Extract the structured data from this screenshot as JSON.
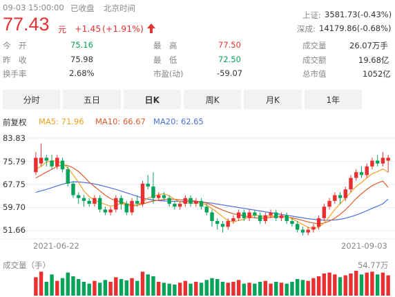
{
  "header": {
    "datetime": "09-03 15:00:00",
    "status": "已收盘",
    "timezone": "北京时间",
    "price": "77.43",
    "currency": "元",
    "change": "+1.45",
    "change_pct": "(+1.91%)",
    "arrow": "up-arrow-icon"
  },
  "indices": [
    {
      "name": "上证:",
      "value": "3581.73(-0.43%)"
    },
    {
      "name": "深成:",
      "value": "14179.86(-0.68%)"
    }
  ],
  "stats": {
    "open_label": "今　开",
    "open": "75.16",
    "prev_label": "昨　收",
    "prev": "75.98",
    "turnover_label": "换手率",
    "turnover": "2.68%",
    "high_label": "最　高",
    "high": "77.50",
    "low_label": "最　低",
    "low": "72.50",
    "pe_label": "市盈(动)",
    "pe": "-59.07",
    "volume_label": "成交量",
    "volume": "26.07万手",
    "amount_label": "成交额",
    "amount": "19.68亿",
    "mcap_label": "总市值",
    "mcap": "1052亿"
  },
  "tabs": [
    {
      "label": "分时",
      "active": false
    },
    {
      "label": "五日",
      "active": false
    },
    {
      "label": "日K",
      "active": true
    },
    {
      "label": "周K",
      "active": false
    },
    {
      "label": "月K",
      "active": false
    },
    {
      "label": "1年",
      "active": false
    }
  ],
  "legend": {
    "adjust": "前复权",
    "ma5": "MA5: 71.96",
    "ma10": "MA10: 66.67",
    "ma20": "MA20: 62.65"
  },
  "colors": {
    "up": "#e93030",
    "down": "#07a35a",
    "ma5": "#f0a020",
    "ma10": "#e05a2a",
    "ma20": "#4a6ee0"
  },
  "volume_label": "成交量（手）",
  "volume_max_label": "54.77万",
  "chart_data": {
    "type": "candlestick",
    "y_ticks": [
      "83.83",
      "75.79",
      "67.75",
      "59.70",
      "51.66"
    ],
    "ylim": [
      49.0,
      83.83
    ],
    "x_labels": [
      "2021-06-22",
      "2021-09-03"
    ],
    "candles": [
      [
        72,
        77,
        71,
        79
      ],
      [
        75,
        77,
        74,
        82
      ],
      [
        77,
        76,
        74,
        78
      ],
      [
        76,
        74,
        73,
        78
      ],
      [
        74,
        77,
        73,
        78
      ],
      [
        76,
        73,
        72,
        77
      ],
      [
        73,
        68,
        67,
        74
      ],
      [
        68,
        64,
        63,
        69
      ],
      [
        64,
        63,
        61,
        65
      ],
      [
        63,
        62,
        60,
        64
      ],
      [
        62,
        61,
        60,
        63
      ],
      [
        61,
        63,
        60,
        64
      ],
      [
        63,
        59,
        58,
        64
      ],
      [
        59,
        58,
        57,
        60
      ],
      [
        58,
        59,
        57,
        60
      ],
      [
        59,
        63,
        58,
        64
      ],
      [
        63,
        61,
        59,
        64
      ],
      [
        61,
        58,
        57,
        62
      ],
      [
        58,
        62,
        57,
        63
      ],
      [
        62,
        61,
        60,
        64
      ],
      [
        61,
        68,
        60,
        69
      ],
      [
        68,
        67,
        66,
        71
      ],
      [
        67,
        63,
        61,
        72
      ],
      [
        63,
        64,
        62,
        65
      ],
      [
        64,
        63,
        62,
        65
      ],
      [
        63,
        61,
        60,
        64
      ],
      [
        61,
        60,
        59,
        62
      ],
      [
        60,
        61,
        59,
        62
      ],
      [
        61,
        63,
        60,
        64
      ],
      [
        63,
        61,
        60,
        64
      ],
      [
        61,
        62,
        60,
        63
      ],
      [
        62,
        60,
        59,
        63
      ],
      [
        60,
        58,
        57,
        61
      ],
      [
        58,
        55,
        53,
        59
      ],
      [
        55,
        54,
        52,
        56
      ],
      [
        54,
        53,
        51,
        55
      ],
      [
        53,
        55,
        52,
        56
      ],
      [
        55,
        56,
        54,
        57
      ],
      [
        56,
        58,
        55,
        59
      ],
      [
        58,
        56,
        55,
        59
      ],
      [
        56,
        58,
        55,
        59
      ],
      [
        58,
        57,
        56,
        59
      ],
      [
        57,
        55,
        54,
        58
      ],
      [
        55,
        57,
        54,
        58
      ],
      [
        57,
        58,
        56,
        59
      ],
      [
        58,
        56,
        55,
        59
      ],
      [
        56,
        57,
        55,
        58
      ],
      [
        57,
        55,
        54,
        58
      ],
      [
        55,
        54,
        53,
        56
      ],
      [
        54,
        52,
        51,
        55
      ],
      [
        52,
        51,
        50,
        53
      ],
      [
        51,
        52,
        50,
        53
      ],
      [
        52,
        53,
        51,
        54
      ],
      [
        53,
        56,
        52,
        57
      ],
      [
        56,
        60,
        55,
        61
      ],
      [
        60,
        62,
        59,
        63
      ],
      [
        62,
        64,
        61,
        65
      ],
      [
        64,
        63,
        61,
        65
      ],
      [
        63,
        66,
        62,
        67
      ],
      [
        66,
        70,
        65,
        71
      ],
      [
        70,
        72,
        69,
        73
      ],
      [
        72,
        71,
        70,
        74
      ],
      [
        71,
        74,
        70,
        75
      ],
      [
        74,
        76,
        73,
        77
      ],
      [
        76,
        75,
        74,
        78
      ],
      [
        75,
        77,
        74,
        79
      ],
      [
        76,
        77,
        72,
        78
      ]
    ],
    "volumes": [
      40,
      52,
      30,
      46,
      32,
      38,
      50,
      42,
      36,
      30,
      26,
      32,
      28,
      34,
      30,
      40,
      36,
      33,
      38,
      32,
      52,
      46,
      42,
      30,
      28,
      26,
      24,
      28,
      32,
      26,
      30,
      28,
      34,
      38,
      36,
      30,
      28,
      30,
      34,
      26,
      28,
      26,
      30,
      32,
      26,
      30,
      28,
      26,
      30,
      36,
      34,
      32,
      38,
      42,
      48,
      50,
      46,
      40,
      44,
      48,
      54,
      46,
      50,
      52,
      46,
      50,
      44
    ],
    "ma5": [
      73,
      74,
      75.5,
      76,
      75.8,
      75,
      73.5,
      71,
      68.5,
      65.5,
      63.5,
      62.3,
      61.5,
      60.8,
      60.2,
      60.6,
      61,
      60.5,
      60.2,
      60.4,
      61.8,
      63,
      63.5,
      64.2,
      64.5,
      63.8,
      62.5,
      61.8,
      61.3,
      61.2,
      61.2,
      61.2,
      60.6,
      59.3,
      58,
      56.5,
      55.1,
      54.7,
      55.2,
      55.6,
      56.6,
      57,
      56.8,
      56.6,
      56.8,
      56.6,
      56.6,
      56.6,
      55.8,
      54.8,
      53.8,
      52.8,
      52.3,
      52.9,
      54.4,
      56.6,
      59,
      61,
      63,
      65,
      67,
      68.4,
      70,
      71.4,
      72.2,
      73.1,
      71.96
    ],
    "ma10": [
      70,
      71,
      72,
      73,
      74,
      74.5,
      74.3,
      73.5,
      72.2,
      70.5,
      68.5,
      67,
      65.5,
      64,
      62.8,
      62.1,
      61.6,
      61,
      60.5,
      60.5,
      60.9,
      61.5,
      62,
      62.2,
      62.5,
      62.6,
      62.6,
      62.4,
      62.3,
      62.2,
      61.9,
      61.6,
      61.2,
      60.5,
      59.6,
      58.8,
      58.1,
      57.5,
      57.2,
      56.8,
      56.4,
      56.1,
      56,
      56,
      56.3,
      56.4,
      56.5,
      56.4,
      56.1,
      55.7,
      55.2,
      54.7,
      54.3,
      54,
      54.3,
      55,
      56,
      57.3,
      58.9,
      60.8,
      62.8,
      64.5,
      66,
      67.3,
      68.2,
      68.9,
      66.67
    ],
    "ma20": [
      65,
      65.5,
      66,
      66.6,
      67.2,
      67.8,
      68.3,
      68.6,
      68.6,
      68.4,
      68.2,
      67.9,
      67.5,
      67,
      66.5,
      66,
      65.4,
      64.8,
      64.2,
      63.6,
      63,
      62.6,
      62.3,
      62.1,
      62,
      61.9,
      61.9,
      61.8,
      61.8,
      61.8,
      61.7,
      61.6,
      61.4,
      61.2,
      60.9,
      60.6,
      60.3,
      60,
      59.7,
      59.4,
      59.1,
      58.8,
      58.5,
      58.2,
      57.9,
      57.6,
      57.3,
      57,
      56.7,
      56.4,
      56.1,
      55.8,
      55.6,
      55.4,
      55.3,
      55.3,
      55.4,
      55.6,
      56,
      56.5,
      57.1,
      57.8,
      58.6,
      59.4,
      60.2,
      61,
      62.65
    ]
  }
}
